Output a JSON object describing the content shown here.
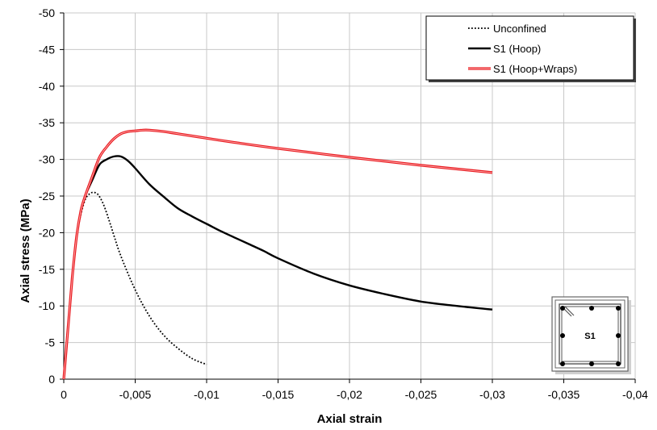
{
  "chart_data": {
    "type": "line",
    "title": "",
    "xlabel": "Axial strain",
    "ylabel": "Axial stress (MPa)",
    "xlim": [
      0,
      -0.04
    ],
    "ylim": [
      0,
      -50
    ],
    "x_ticks": [
      "0",
      "-0,005",
      "-0,01",
      "-0,015",
      "-0,02",
      "-0,025",
      "-0,03",
      "-0,035",
      "-0,04"
    ],
    "y_ticks": [
      "0",
      "-5",
      "-10",
      "-15",
      "-20",
      "-25",
      "-30",
      "-35",
      "-40",
      "-45",
      "-50"
    ],
    "grid": true,
    "legend_position": "top-right",
    "series": [
      {
        "name": "Unconfined",
        "color": "#000000",
        "style": "dotted",
        "x": [
          0,
          -0.0003,
          -0.0006,
          -0.0009,
          -0.0012,
          -0.0015,
          -0.0018,
          -0.0021,
          -0.0024,
          -0.0027,
          -0.003,
          -0.0035,
          -0.004,
          -0.005,
          -0.006,
          -0.007,
          -0.008,
          -0.009,
          -0.01
        ],
        "y": [
          0,
          -7,
          -14,
          -19.5,
          -22.5,
          -24.5,
          -25.3,
          -25.5,
          -25.2,
          -24.2,
          -22.7,
          -19.7,
          -16.8,
          -12.2,
          -8.6,
          -6.0,
          -4.2,
          -2.8,
          -2.0
        ]
      },
      {
        "name": "S1 (Hoop)",
        "color": "#000000",
        "style": "solid",
        "x": [
          0,
          -0.0003,
          -0.0006,
          -0.0009,
          -0.0012,
          -0.0015,
          -0.002,
          -0.0025,
          -0.003,
          -0.0035,
          -0.004,
          -0.0045,
          -0.005,
          -0.006,
          -0.007,
          -0.008,
          -0.009,
          -0.01,
          -0.011,
          -0.012,
          -0.013,
          -0.014,
          -0.015,
          -0.0175,
          -0.02,
          -0.0225,
          -0.025,
          -0.0275,
          -0.03
        ],
        "y": [
          0,
          -7,
          -14,
          -19.5,
          -23,
          -25,
          -27.2,
          -29.3,
          -30,
          -30.4,
          -30.4,
          -29.8,
          -28.8,
          -26.6,
          -24.9,
          -23.3,
          -22.2,
          -21.2,
          -20.2,
          -19.3,
          -18.4,
          -17.5,
          -16.5,
          -14.4,
          -12.8,
          -11.6,
          -10.6,
          -10.0,
          -9.5
        ]
      },
      {
        "name": "S1 (Hoop+Wraps)",
        "color": "#e8191f",
        "style": "double",
        "x": [
          0,
          -0.0003,
          -0.0006,
          -0.0009,
          -0.0012,
          -0.0015,
          -0.002,
          -0.0025,
          -0.003,
          -0.0035,
          -0.004,
          -0.0045,
          -0.005,
          -0.0055,
          -0.006,
          -0.007,
          -0.008,
          -0.01,
          -0.012,
          -0.015,
          -0.02,
          -0.025,
          -0.03
        ],
        "y": [
          0,
          -7,
          -14,
          -19.5,
          -23,
          -25,
          -27.7,
          -30.3,
          -31.7,
          -32.8,
          -33.5,
          -33.8,
          -33.9,
          -34.0,
          -34.0,
          -33.8,
          -33.5,
          -32.9,
          -32.3,
          -31.5,
          -30.3,
          -29.2,
          -28.2
        ]
      }
    ],
    "legend": [
      "Unconfined",
      "S1 (Hoop)",
      "S1 (Hoop+Wraps)"
    ],
    "inset_label": "S1"
  }
}
